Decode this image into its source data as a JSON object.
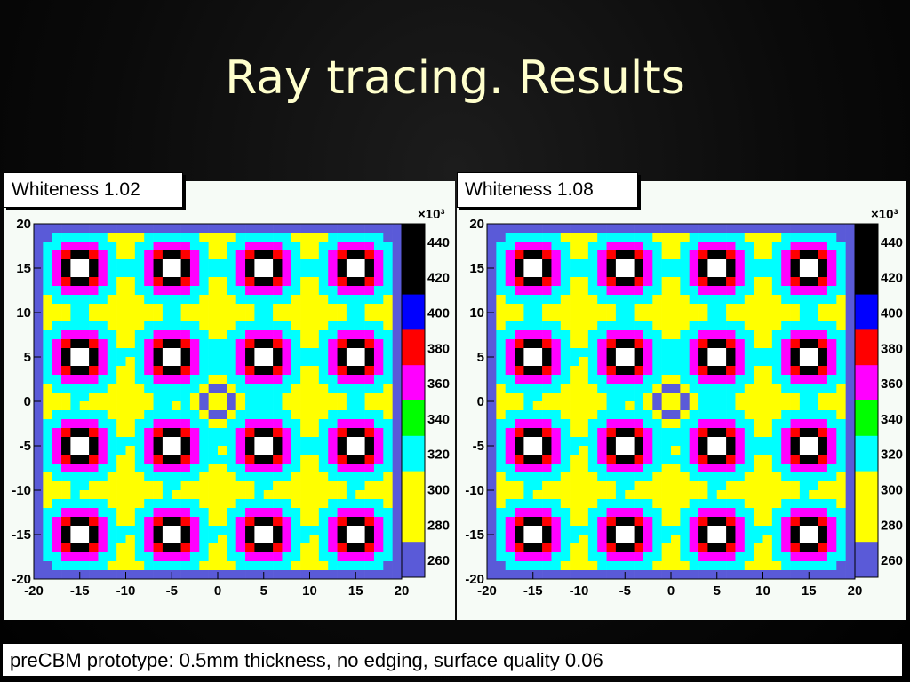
{
  "slide": {
    "title": "Ray tracing. Results",
    "caption": "preCBM prototype: 0.5mm thickness, no edging, surface quality 0.06"
  },
  "chart_data": [
    {
      "type": "heatmap",
      "label": "Whiteness 1.02",
      "x_ticks": [
        "-20",
        "-15",
        "-10",
        "-5",
        "0",
        "5",
        "10",
        "15",
        "20"
      ],
      "y_ticks": [
        "20",
        "15",
        "10",
        "5",
        "0",
        "-5",
        "-10",
        "-15",
        "-20"
      ],
      "xlim": [
        -20,
        20
      ],
      "ylim": [
        -20,
        20
      ],
      "z_scale_label": "×10³",
      "z_ticks": [
        "440",
        "420",
        "400",
        "380",
        "360",
        "340",
        "320",
        "300",
        "280",
        "260"
      ],
      "z_levels": [
        250,
        270,
        290,
        310,
        330,
        350,
        370,
        390,
        410,
        430,
        450
      ],
      "palette": [
        "#5a5ad8",
        "#ffff00",
        "#00ffff",
        "#00ff00",
        "#ff00ff",
        "#ff0000",
        "#0000ff",
        "#000000",
        "#000000",
        "#000000"
      ],
      "hot_spots_x": [
        -15,
        -5,
        5,
        15
      ],
      "hot_spots_y": [
        15,
        5,
        -5,
        -15
      ],
      "center_ring": [
        0,
        0
      ]
    },
    {
      "type": "heatmap",
      "label": "Whiteness 1.08",
      "x_ticks": [
        "-20",
        "-15",
        "-10",
        "-5",
        "0",
        "5",
        "10",
        "15",
        "20"
      ],
      "y_ticks": [
        "20",
        "15",
        "10",
        "5",
        "0",
        "-5",
        "-10",
        "-15",
        "-20"
      ],
      "xlim": [
        -20,
        20
      ],
      "ylim": [
        -20,
        20
      ],
      "z_scale_label": "×10³",
      "z_ticks": [
        "440",
        "420",
        "400",
        "380",
        "360",
        "340",
        "320",
        "300",
        "280",
        "260"
      ],
      "z_levels": [
        250,
        270,
        290,
        310,
        330,
        350,
        370,
        390,
        410,
        430,
        450
      ],
      "palette": [
        "#5a5ad8",
        "#ffff00",
        "#00ffff",
        "#00ff00",
        "#ff00ff",
        "#ff0000",
        "#0000ff",
        "#000000",
        "#000000",
        "#000000"
      ],
      "hot_spots_x": [
        -15,
        -5,
        5,
        15
      ],
      "hot_spots_y": [
        15,
        5,
        -5,
        -15
      ],
      "center_ring": [
        0,
        0
      ]
    }
  ]
}
